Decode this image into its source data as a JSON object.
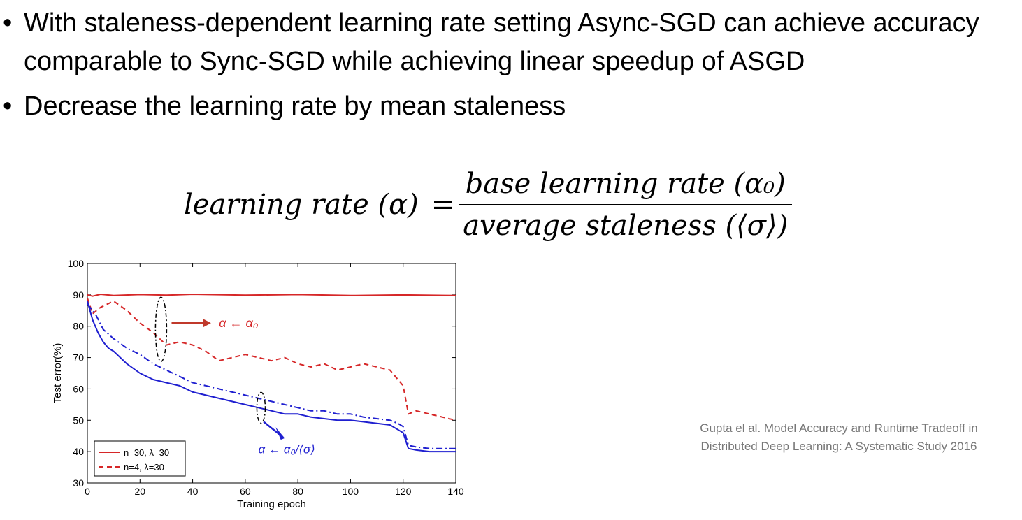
{
  "slide": {
    "bullets": [
      "With staleness-dependent learning rate setting Async-SGD can achieve accuracy comparable to Sync-SGD while achieving linear speedup of ASGD",
      "Decrease the learning rate by mean staleness"
    ],
    "formula": {
      "lhs": "learning rate (α)",
      "equals": "=",
      "numerator": "base learning rate (α₀)",
      "denominator": "average staleness (⟨σ⟩)"
    },
    "citation": [
      "Gupta el al. Model Accuracy and Runtime Tradeoff in",
      "Distributed Deep Learning: A Systematic Study 2016"
    ]
  },
  "colors": {
    "red": "#d62728",
    "blue": "#1f1fd0",
    "arrow_red": "#c0392b"
  },
  "chart_data": {
    "type": "line",
    "xlabel": "Training epoch",
    "ylabel": "Test error(%)",
    "xlim": [
      0,
      140
    ],
    "ylim": [
      30,
      100
    ],
    "xticks": [
      0,
      20,
      40,
      60,
      80,
      100,
      120,
      140
    ],
    "yticks": [
      30,
      40,
      50,
      60,
      70,
      80,
      90,
      100
    ],
    "grid": false,
    "legend_position": "bottom-left",
    "legend": [
      "n=30, λ=30",
      "n=4, λ=30"
    ],
    "annotations": [
      {
        "text": "α ← α₀",
        "color": "red"
      },
      {
        "text": "α ← α₀/⟨σ⟩",
        "color": "blue"
      }
    ],
    "series": [
      {
        "name": "n=30, λ=30",
        "color": "red",
        "style": "solid",
        "x": [
          0,
          2,
          5,
          10,
          20,
          30,
          40,
          60,
          80,
          100,
          120,
          140
        ],
        "y": [
          90,
          89.6,
          90.2,
          89.8,
          90.1,
          89.9,
          90.2,
          89.9,
          90.1,
          89.8,
          90,
          89.8
        ]
      },
      {
        "name": "n=4, λ=30",
        "color": "red",
        "style": "dashed",
        "x": [
          0,
          2,
          5,
          10,
          15,
          20,
          25,
          30,
          35,
          40,
          45,
          50,
          55,
          60,
          65,
          70,
          75,
          80,
          85,
          90,
          95,
          100,
          105,
          110,
          115,
          118,
          120,
          122,
          125,
          130,
          135,
          140
        ],
        "y": [
          89,
          84,
          86,
          88,
          85,
          81,
          78,
          74,
          75,
          74,
          72,
          69,
          70,
          71,
          70,
          69,
          70,
          68,
          67,
          68,
          66,
          67,
          68,
          67,
          66,
          63,
          61,
          52,
          53,
          52,
          51,
          50
        ]
      },
      {
        "name": "",
        "color": "blue",
        "style": "solid",
        "x": [
          0,
          2,
          4,
          6,
          8,
          10,
          15,
          20,
          25,
          30,
          35,
          40,
          45,
          50,
          55,
          60,
          65,
          70,
          75,
          80,
          85,
          90,
          95,
          100,
          105,
          110,
          115,
          118,
          120,
          122,
          125,
          130,
          135,
          140
        ],
        "y": [
          88,
          82,
          78,
          75,
          73,
          72,
          68,
          65,
          63,
          62,
          61,
          59,
          58,
          57,
          56,
          55,
          54,
          53,
          52,
          52,
          51,
          50.5,
          50,
          50,
          49.5,
          49,
          48.5,
          47,
          46,
          41,
          40.5,
          40,
          40,
          40
        ]
      },
      {
        "name": "",
        "color": "blue",
        "style": "dashdot",
        "x": [
          0,
          3,
          6,
          10,
          15,
          20,
          25,
          30,
          35,
          40,
          45,
          50,
          55,
          60,
          65,
          70,
          75,
          80,
          85,
          90,
          95,
          100,
          105,
          110,
          115,
          118,
          120,
          122,
          125,
          130,
          135,
          140
        ],
        "y": [
          87,
          84,
          79,
          76,
          73,
          71,
          68,
          66,
          64,
          62,
          61,
          60,
          59,
          58,
          57,
          56,
          55,
          54,
          53,
          53,
          52,
          52,
          51,
          50.5,
          50,
          49,
          48,
          42,
          41.5,
          41,
          41,
          41
        ]
      }
    ]
  }
}
